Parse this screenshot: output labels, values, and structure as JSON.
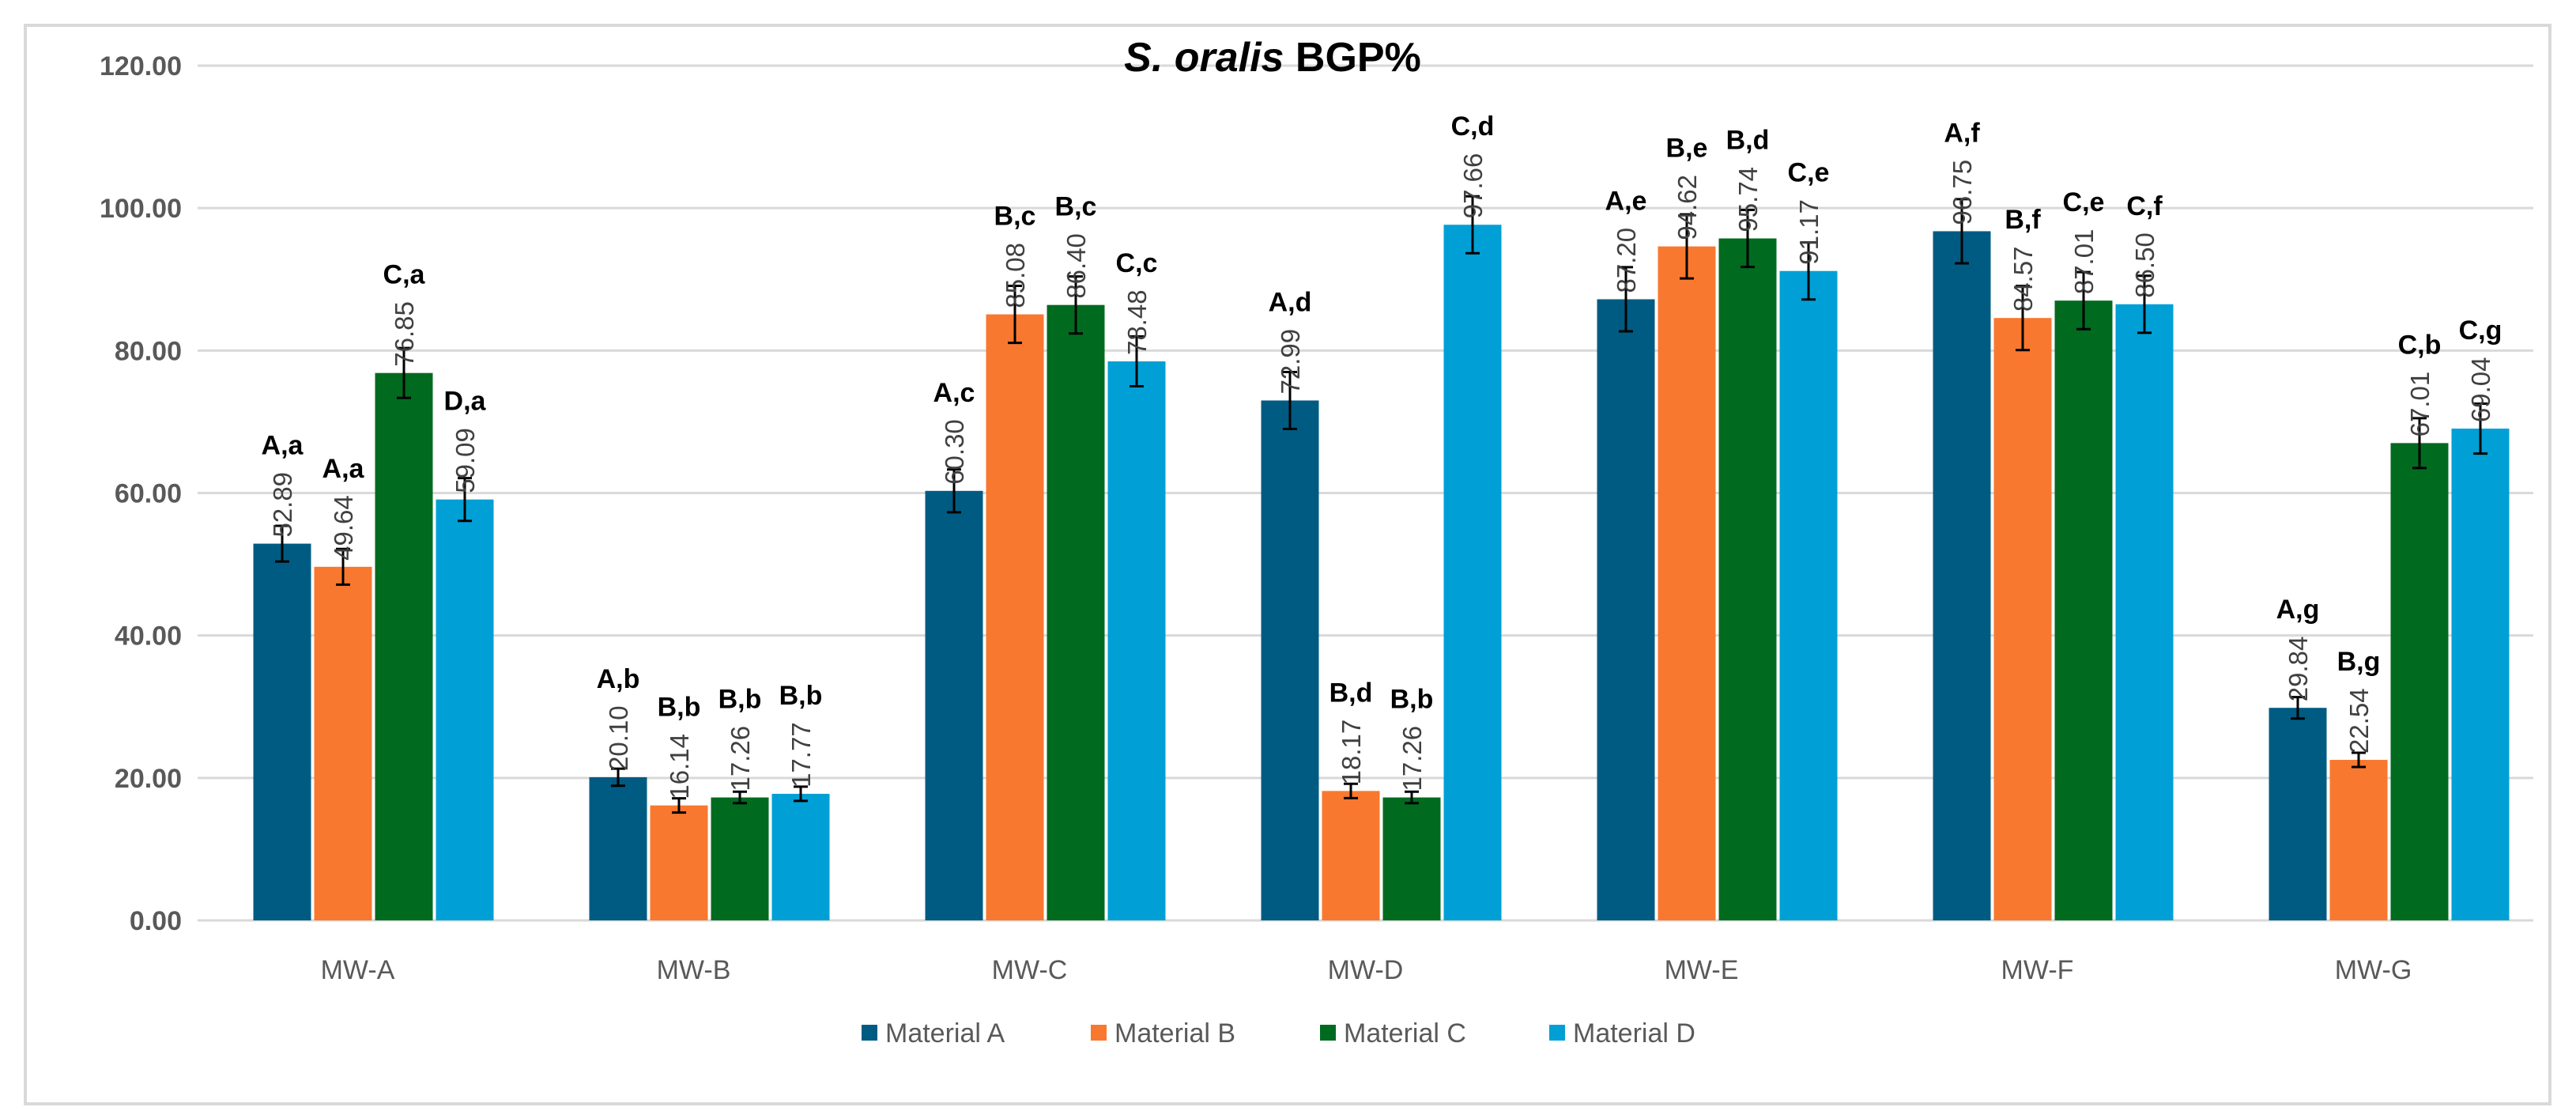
{
  "chart_data": {
    "type": "bar",
    "title_italic": "S. oralis",
    "title_rest": " BGP%",
    "xlabel": "",
    "ylabel": "",
    "ylim": [
      0,
      120
    ],
    "yticks": [
      "0.00",
      "20.00",
      "40.00",
      "60.00",
      "80.00",
      "100.00",
      "120.00"
    ],
    "grid": true,
    "legend_position": "bottom",
    "categories": [
      "MW-A",
      "MW-B",
      "MW-C",
      "MW-D",
      "MW-E",
      "MW-F",
      "MW-G"
    ],
    "series": [
      {
        "name": "Material A",
        "color": "#005b82",
        "values": [
          52.89,
          20.1,
          60.3,
          72.99,
          87.2,
          96.75,
          29.84
        ],
        "errors": [
          2.5,
          1.2,
          3.0,
          4.0,
          4.5,
          4.5,
          1.5
        ],
        "labels": [
          "52.89",
          "20.10",
          "60.30",
          "72.99",
          "87.20",
          "96.75",
          "29.84"
        ],
        "letters": [
          "A,a",
          "A,b",
          "A,c",
          "A,d",
          "A,e",
          "A,f",
          "A,g"
        ]
      },
      {
        "name": "Material B",
        "color": "#f9782f",
        "values": [
          49.64,
          16.14,
          85.08,
          18.17,
          94.62,
          84.57,
          22.54
        ],
        "errors": [
          2.5,
          1.0,
          4.0,
          1.0,
          4.5,
          4.5,
          1.0
        ],
        "labels": [
          "49.64",
          "16.14",
          "85.08",
          "18.17",
          "94.62",
          "84.57",
          "22.54"
        ],
        "letters": [
          "A,a",
          "B,b",
          "B,c",
          "B,d",
          "B,e",
          "B,f",
          "B,g"
        ]
      },
      {
        "name": "Material C",
        "color": "#006b1f",
        "values": [
          76.85,
          17.26,
          86.4,
          17.26,
          95.74,
          87.01,
          67.01
        ],
        "errors": [
          3.5,
          0.8,
          4.0,
          0.8,
          4.0,
          4.0,
          3.5
        ],
        "labels": [
          "76.85",
          "17.26",
          "86.40",
          "17.26",
          "95.74",
          "87.01",
          "67.01"
        ],
        "letters": [
          "C,a",
          "B,b",
          "B,c",
          "B,b",
          "B,d",
          "C,e",
          "C,b"
        ]
      },
      {
        "name": "Material D",
        "color": "#00a0d6",
        "values": [
          59.09,
          17.77,
          78.48,
          97.66,
          91.17,
          86.5,
          69.04
        ],
        "errors": [
          3.0,
          1.0,
          3.5,
          4.0,
          4.0,
          4.0,
          3.5
        ],
        "labels": [
          "59.09",
          "17.77",
          "78.48",
          "97.66",
          "91.17",
          "86.50",
          "69.04"
        ],
        "letters": [
          "D,a",
          "B,b",
          "C,c",
          "C,d",
          "C,e",
          "C,f",
          "C,g"
        ]
      }
    ]
  }
}
